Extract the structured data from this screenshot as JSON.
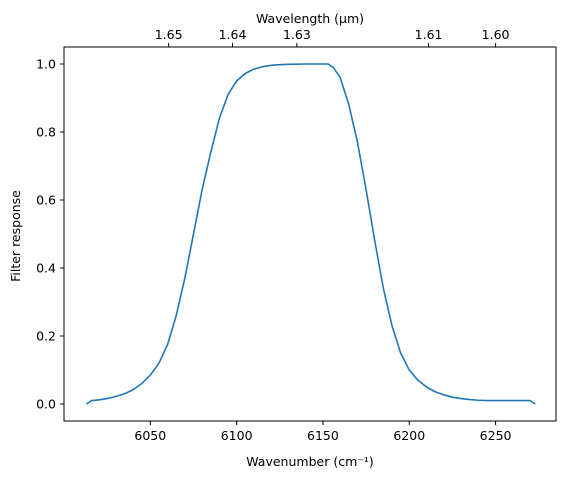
{
  "chart_data": {
    "type": "line",
    "title": "",
    "xlabel": "Wavenumber (cm⁻¹)",
    "ylabel": "Filter response",
    "top_xlabel": "Wavelength (μm)",
    "xlim": [
      6000,
      6285
    ],
    "ylim": [
      -0.05,
      1.05
    ],
    "x_ticks": [
      6050,
      6100,
      6150,
      6200,
      6250
    ],
    "y_ticks": [
      0.0,
      0.2,
      0.4,
      0.6,
      0.8,
      1.0
    ],
    "y_tick_labels": [
      "0.0",
      "0.2",
      "0.4",
      "0.6",
      "0.8",
      "1.0"
    ],
    "top_ticks": [
      {
        "label": "1.65",
        "x": 6060.6
      },
      {
        "label": "1.64",
        "x": 6097.6
      },
      {
        "label": "1.63",
        "x": 6134.9
      },
      {
        "label": "1.61",
        "x": 6211.2
      },
      {
        "label": "1.60",
        "x": 6250.0
      }
    ],
    "grid": false,
    "legend": "none",
    "series": [
      {
        "color": "#1f77b4",
        "x": [
          6013,
          6016,
          6020,
          6025,
          6030,
          6035,
          6040,
          6045,
          6050,
          6055,
          6060,
          6065,
          6070,
          6075,
          6080,
          6085,
          6090,
          6095,
          6100,
          6105,
          6110,
          6115,
          6120,
          6125,
          6130,
          6135,
          6140,
          6145,
          6150,
          6153,
          6156,
          6160,
          6165,
          6170,
          6175,
          6180,
          6185,
          6190,
          6195,
          6200,
          6205,
          6210,
          6215,
          6220,
          6225,
          6230,
          6235,
          6240,
          6245,
          6250,
          6255,
          6260,
          6265,
          6270,
          6273
        ],
        "y": [
          0.0,
          0.01,
          0.012,
          0.016,
          0.022,
          0.03,
          0.042,
          0.06,
          0.085,
          0.12,
          0.175,
          0.26,
          0.37,
          0.5,
          0.63,
          0.74,
          0.84,
          0.91,
          0.95,
          0.972,
          0.985,
          0.992,
          0.996,
          0.998,
          0.999,
          0.9995,
          1.0,
          1.0,
          1.0,
          1.0,
          0.99,
          0.96,
          0.88,
          0.77,
          0.63,
          0.48,
          0.34,
          0.23,
          0.15,
          0.1,
          0.07,
          0.05,
          0.036,
          0.027,
          0.02,
          0.016,
          0.013,
          0.011,
          0.01,
          0.01,
          0.01,
          0.01,
          0.01,
          0.01,
          0.0
        ]
      }
    ]
  }
}
